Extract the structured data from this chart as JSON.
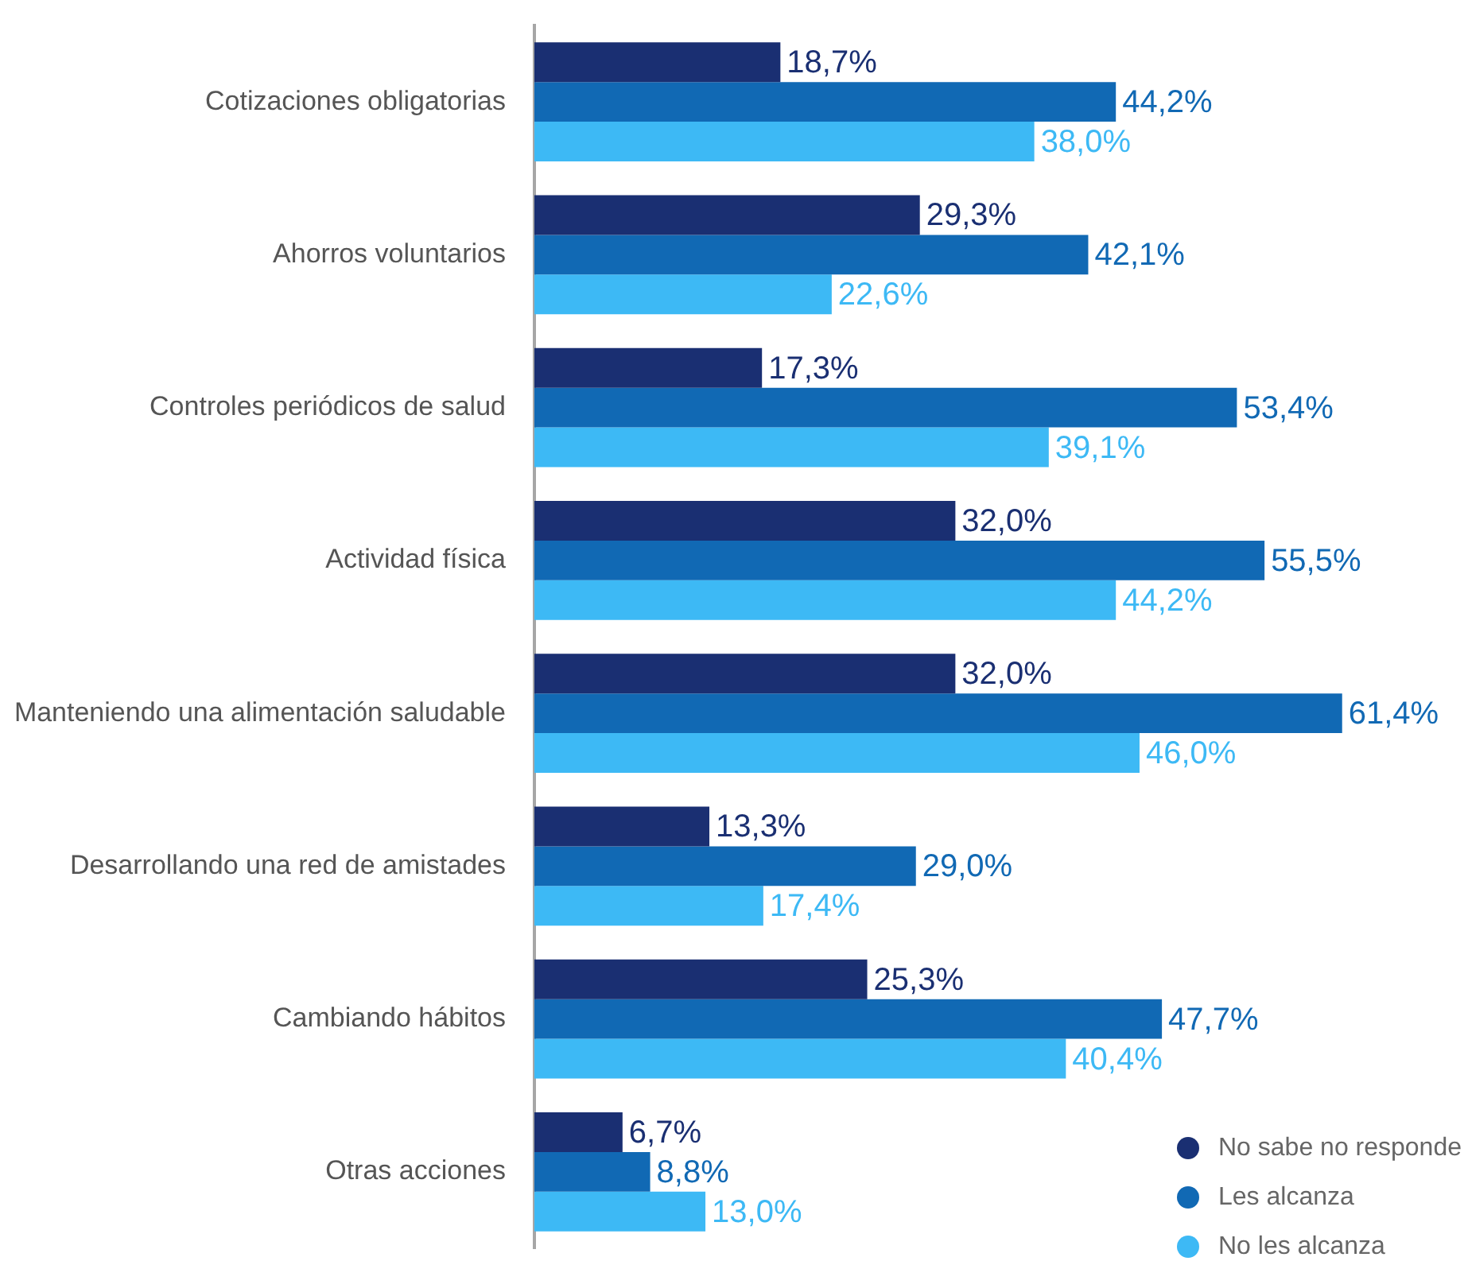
{
  "chart_data": {
    "type": "bar",
    "orientation": "horizontal",
    "tick_labels": "y",
    "legend": "bottom right",
    "categories": [
      "Cotizaciones obligatorias",
      "Ahorros voluntarios",
      "Controles periódicos de salud",
      "Actividad física",
      "Manteniendo una alimentación saludable",
      "Desarrollando una red de amistades",
      "Cambiando hábitos",
      "Otras acciones"
    ],
    "series": [
      {
        "name": "No sabe no responde",
        "color": "#1a2f72",
        "values": [
          18.7,
          29.3,
          17.3,
          32.0,
          32.0,
          13.3,
          25.3,
          6.7
        ],
        "value_labels": [
          "18,7%",
          "29,3%",
          "17,3%",
          "32,0%",
          "32,0%",
          "13,3%",
          "25,3%",
          "6,7%"
        ]
      },
      {
        "name": "Les alcanza",
        "color": "#1169b4",
        "values": [
          44.2,
          42.1,
          53.4,
          55.5,
          61.4,
          29.0,
          47.7,
          8.8
        ],
        "value_labels": [
          "44,2%",
          "42,1%",
          "53,4%",
          "55,5%",
          "61,4%",
          "29,0%",
          "47,7%",
          "8,8%"
        ]
      },
      {
        "name": "No les alcanza",
        "color": "#3db9f5",
        "values": [
          38.0,
          22.6,
          39.1,
          44.2,
          46.0,
          17.4,
          40.4,
          13.0
        ],
        "value_labels": [
          "38,0%",
          "22,6%",
          "39,1%",
          "44,2%",
          "46,0%",
          "17,4%",
          "40,4%",
          "13,0%"
        ]
      }
    ]
  }
}
